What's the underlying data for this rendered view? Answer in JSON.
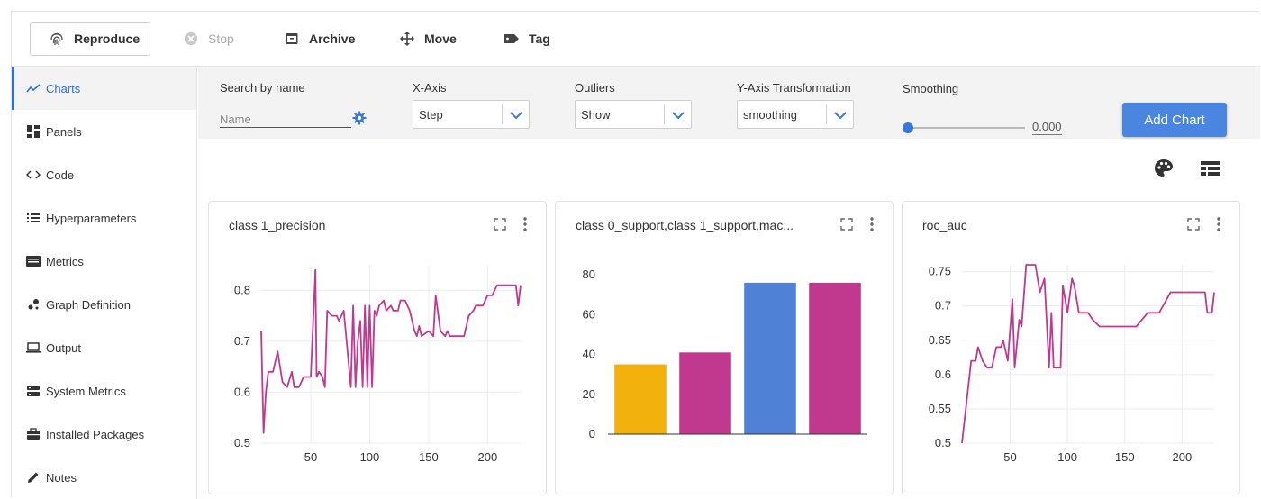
{
  "toolbar": {
    "reproduce": "Reproduce",
    "stop": "Stop",
    "archive": "Archive",
    "move": "Move",
    "tag": "Tag"
  },
  "sidebar": {
    "items": [
      {
        "label": "Charts",
        "icon": "line-chart-icon",
        "active": true
      },
      {
        "label": "Panels",
        "icon": "dashboard-icon"
      },
      {
        "label": "Code",
        "icon": "code-icon"
      },
      {
        "label": "Hyperparameters",
        "icon": "list-icon"
      },
      {
        "label": "Metrics",
        "icon": "metrics-icon"
      },
      {
        "label": "Graph Definition",
        "icon": "graph-icon"
      },
      {
        "label": "Output",
        "icon": "laptop-icon"
      },
      {
        "label": "System Metrics",
        "icon": "server-icon"
      },
      {
        "label": "Installed Packages",
        "icon": "package-icon"
      },
      {
        "label": "Notes",
        "icon": "pencil-icon"
      }
    ]
  },
  "filters": {
    "search_label": "Search by name",
    "search_placeholder": "Name",
    "xaxis_label": "X-Axis",
    "xaxis_value": "Step",
    "outliers_label": "Outliers",
    "outliers_value": "Show",
    "ytrans_label": "Y-Axis Transformation",
    "ytrans_value": "smoothing",
    "smoothing_label": "Smoothing",
    "smoothing_value": "0.000",
    "add_chart": "Add Chart"
  },
  "colors": {
    "accent": "#4a86e0",
    "line": "#c0398f",
    "bar_yellow": "#f2b10c",
    "bar_magenta": "#c0398f",
    "bar_blue": "#4f82d6"
  },
  "charts": {
    "c1_title": "class 1_precision",
    "c2_title": "class 0_support,class 1_support,mac...",
    "c3_title": "roc_auc"
  },
  "chart_data": [
    {
      "type": "line",
      "title": "class 1_precision",
      "xlim": [
        8,
        228
      ],
      "ylim": [
        0.5,
        0.85
      ],
      "xticks": [
        "50",
        "100",
        "150",
        "200"
      ],
      "yticks": [
        "0.5",
        "0.6",
        "0.7",
        "0.8"
      ],
      "series": [
        {
          "color": "#c0398f",
          "x": [
            8,
            10,
            12,
            14,
            18,
            22,
            24,
            26,
            30,
            34,
            36,
            38,
            40,
            44,
            46,
            50,
            54,
            55,
            57,
            60,
            62,
            64,
            68,
            72,
            74,
            78,
            80,
            84,
            86,
            88,
            90,
            92,
            94,
            96,
            98,
            100,
            102,
            104,
            106,
            108,
            112,
            114,
            118,
            120,
            124,
            126,
            130,
            134,
            138,
            140,
            142,
            144,
            150,
            154,
            156,
            160,
            164,
            166,
            168,
            172,
            176,
            180,
            184,
            188,
            190,
            192,
            196,
            200,
            204,
            208,
            212,
            216,
            220,
            224,
            226,
            228
          ],
          "y": [
            0.72,
            0.52,
            0.6,
            0.64,
            0.64,
            0.68,
            0.65,
            0.62,
            0.61,
            0.64,
            0.61,
            0.61,
            0.61,
            0.63,
            0.63,
            0.63,
            0.84,
            0.63,
            0.64,
            0.63,
            0.61,
            0.76,
            0.75,
            0.75,
            0.74,
            0.76,
            0.71,
            0.61,
            0.77,
            0.61,
            0.7,
            0.74,
            0.61,
            0.77,
            0.61,
            0.77,
            0.61,
            0.76,
            0.75,
            0.77,
            0.78,
            0.76,
            0.77,
            0.76,
            0.76,
            0.78,
            0.78,
            0.76,
            0.72,
            0.71,
            0.73,
            0.71,
            0.72,
            0.71,
            0.79,
            0.72,
            0.71,
            0.72,
            0.71,
            0.71,
            0.71,
            0.71,
            0.75,
            0.76,
            0.77,
            0.77,
            0.77,
            0.79,
            0.79,
            0.81,
            0.81,
            0.81,
            0.81,
            0.81,
            0.77,
            0.81
          ]
        }
      ]
    },
    {
      "type": "bar",
      "title": "class 0_support,class 1_support,mac...",
      "ylim": [
        0,
        85
      ],
      "yticks": [
        "0",
        "20",
        "40",
        "60",
        "80"
      ],
      "values": [
        35,
        41,
        76,
        76
      ],
      "colors": [
        "#f2b10c",
        "#c0398f",
        "#4f82d6",
        "#c0398f"
      ]
    },
    {
      "type": "line",
      "title": "roc_auc",
      "xlim": [
        8,
        228
      ],
      "ylim": [
        0.5,
        0.76
      ],
      "xticks": [
        "50",
        "100",
        "150",
        "200"
      ],
      "yticks": [
        "0.5",
        "0.55",
        "0.6",
        "0.65",
        "0.7",
        "0.75"
      ],
      "series": [
        {
          "color": "#c0398f",
          "x": [
            8,
            12,
            16,
            20,
            22,
            26,
            30,
            34,
            38,
            42,
            44,
            48,
            52,
            54,
            58,
            60,
            64,
            68,
            72,
            76,
            80,
            84,
            86,
            88,
            90,
            94,
            96,
            100,
            104,
            106,
            110,
            114,
            118,
            122,
            128,
            130,
            140,
            150,
            160,
            170,
            174,
            180,
            190,
            196,
            200,
            210,
            220,
            222,
            226,
            228
          ],
          "y": [
            0.5,
            0.56,
            0.62,
            0.62,
            0.64,
            0.62,
            0.61,
            0.61,
            0.64,
            0.64,
            0.65,
            0.62,
            0.71,
            0.61,
            0.68,
            0.67,
            0.76,
            0.76,
            0.76,
            0.72,
            0.74,
            0.61,
            0.69,
            0.61,
            0.61,
            0.61,
            0.73,
            0.69,
            0.74,
            0.73,
            0.69,
            0.69,
            0.69,
            0.68,
            0.67,
            0.67,
            0.67,
            0.67,
            0.67,
            0.69,
            0.69,
            0.69,
            0.72,
            0.72,
            0.72,
            0.72,
            0.72,
            0.69,
            0.69,
            0.72
          ]
        }
      ]
    }
  ]
}
